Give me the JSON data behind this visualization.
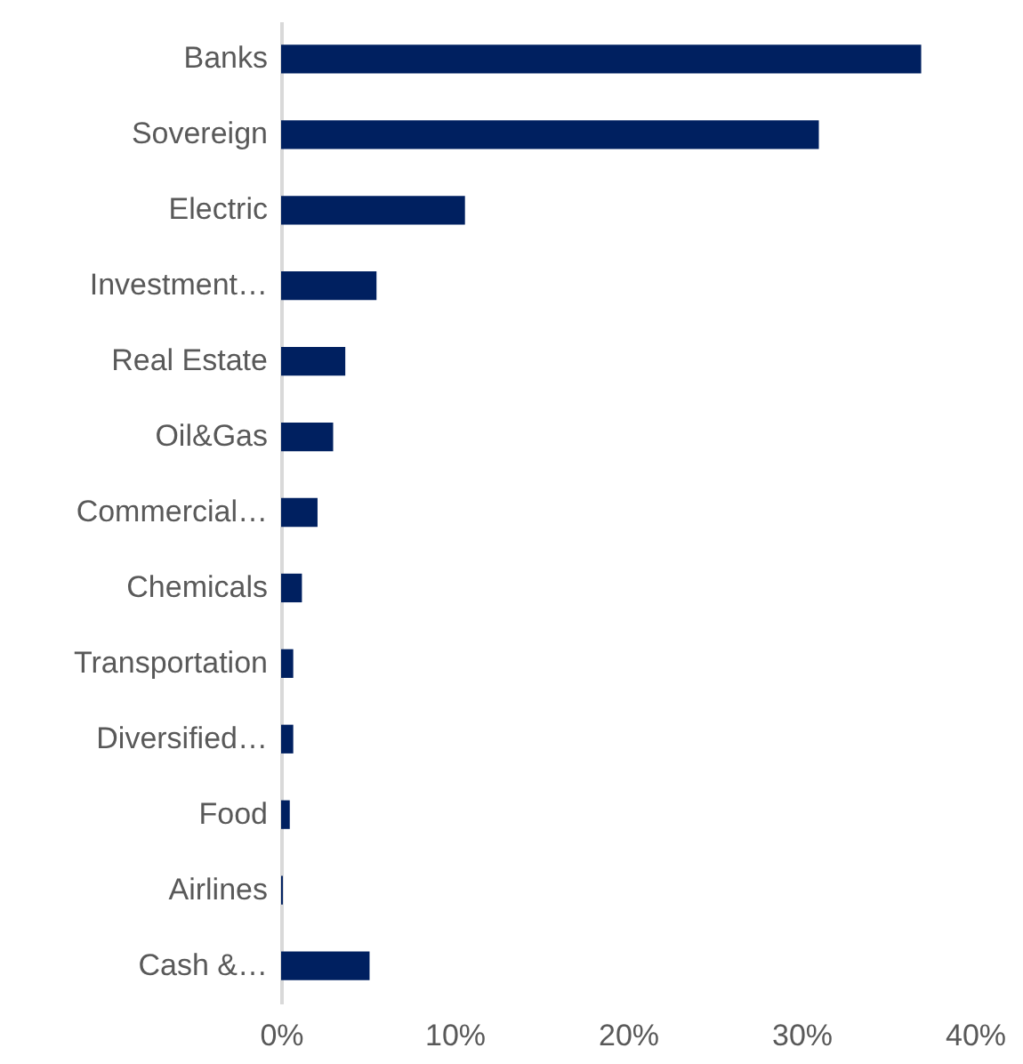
{
  "chart_data": {
    "type": "bar",
    "orientation": "horizontal",
    "categories": [
      "Banks",
      "Sovereign",
      "Electric",
      "Investment…",
      "Real Estate",
      "Oil&Gas",
      "Commercial…",
      "Chemicals",
      "Transportation",
      "Diversified…",
      "Food",
      "Airlines",
      "Cash &…"
    ],
    "values": [
      36.9,
      31.0,
      10.6,
      5.5,
      3.7,
      3.0,
      2.1,
      1.2,
      0.7,
      0.7,
      0.5,
      0.1,
      5.1
    ],
    "color": "#002060",
    "xlim": [
      0,
      40
    ],
    "xticks": [
      {
        "value": 0,
        "label": "0%"
      },
      {
        "value": 10,
        "label": "10%"
      },
      {
        "value": 20,
        "label": "20%"
      },
      {
        "value": 30,
        "label": "30%"
      },
      {
        "value": 40,
        "label": "40%"
      }
    ],
    "grid": false
  }
}
